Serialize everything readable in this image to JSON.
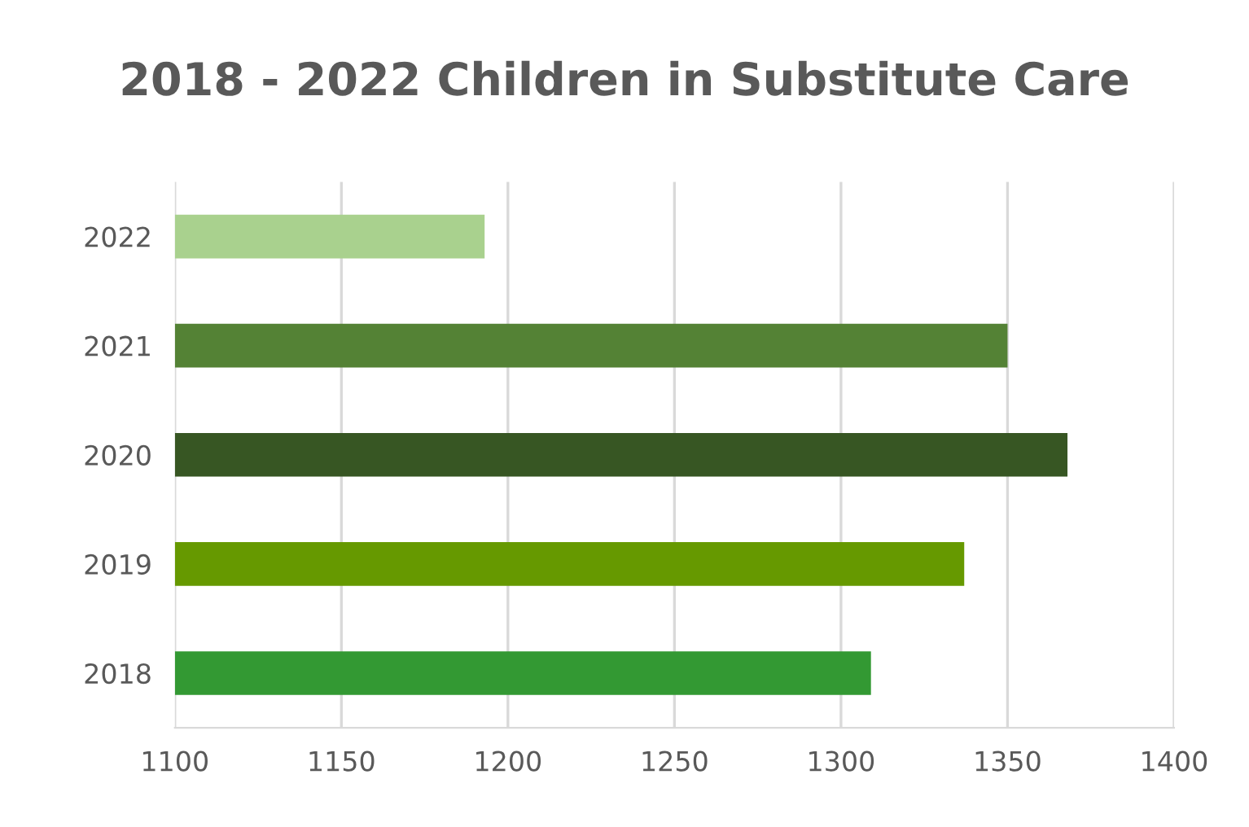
{
  "chart_data": {
    "type": "bar",
    "orientation": "horizontal",
    "title": "2018 - 2022 Children in Substitute Care",
    "categories": [
      "2022",
      "2021",
      "2020",
      "2019",
      "2018"
    ],
    "values": [
      1193,
      1350,
      1368,
      1337,
      1309
    ],
    "colors": [
      "#a9d18e",
      "#548235",
      "#375623",
      "#669900",
      "#339933"
    ],
    "xlim": [
      1100,
      1400
    ],
    "xticks": [
      1100,
      1150,
      1200,
      1250,
      1300,
      1350,
      1400
    ],
    "grid": "x",
    "legend": false
  }
}
